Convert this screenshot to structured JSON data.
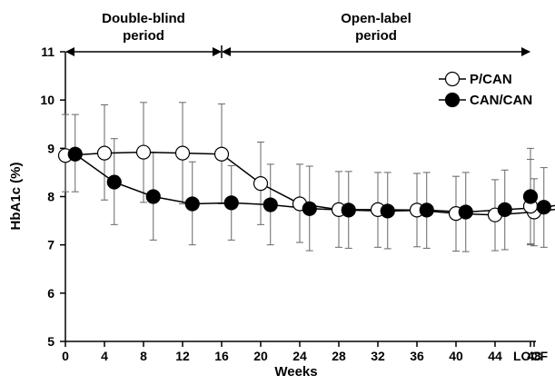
{
  "chart_data": {
    "type": "line",
    "xlabel": "Weeks",
    "ylabel": "HbA1c (%)",
    "ylim": [
      5,
      11
    ],
    "yticks": [
      5,
      6,
      7,
      8,
      9,
      10,
      11
    ],
    "xtick_labels": [
      "0",
      "4",
      "8",
      "12",
      "16",
      "20",
      "24",
      "28",
      "32",
      "36",
      "40",
      "44",
      "48",
      "52",
      "LOCF"
    ],
    "periods": [
      {
        "label_line1": "Double-blind",
        "label_line2": "period",
        "x_start": 0,
        "x_end": 16
      },
      {
        "label_line1": "Open-label",
        "label_line2": "period",
        "x_start": 16,
        "x_end": "LOCF"
      }
    ],
    "legend_position": "top-right",
    "series": [
      {
        "name": "P/CAN",
        "marker": "open-circle",
        "x": [
          0,
          4,
          8,
          12,
          16,
          20,
          24,
          28,
          32,
          36,
          40,
          44,
          48,
          52,
          "LOCF"
        ],
        "y": [
          8.85,
          8.9,
          8.92,
          8.9,
          8.88,
          8.27,
          7.85,
          7.73,
          7.73,
          7.72,
          7.65,
          7.62,
          7.68,
          7.78,
          7.8
        ],
        "error_upper": [
          9.7,
          9.9,
          9.95,
          9.95,
          9.92,
          9.13,
          8.67,
          8.52,
          8.5,
          8.48,
          8.42,
          8.35,
          8.37,
          8.5,
          8.77
        ],
        "error_lower": [
          8.1,
          7.93,
          7.88,
          7.85,
          7.85,
          7.42,
          7.05,
          6.95,
          6.95,
          6.96,
          6.87,
          6.88,
          6.98,
          7.07,
          7.0
        ]
      },
      {
        "name": "CAN/CAN",
        "marker": "filled-circle",
        "x": [
          1,
          5,
          9,
          13,
          17,
          21,
          25,
          29,
          33,
          37,
          41,
          45,
          49,
          53,
          "LOCF"
        ],
        "y": [
          8.88,
          8.3,
          8.0,
          7.85,
          7.87,
          7.83,
          7.75,
          7.72,
          7.7,
          7.72,
          7.68,
          7.73,
          7.78,
          7.9,
          8.0
        ],
        "error_upper": [
          9.7,
          9.2,
          8.92,
          8.72,
          8.64,
          8.67,
          8.63,
          8.52,
          8.5,
          8.5,
          8.5,
          8.55,
          8.6,
          8.77,
          9.0
        ],
        "error_lower": [
          8.1,
          7.42,
          7.1,
          7.0,
          7.1,
          7.0,
          6.88,
          6.93,
          6.92,
          6.93,
          6.86,
          6.9,
          6.95,
          7.03,
          7.02
        ]
      }
    ]
  }
}
